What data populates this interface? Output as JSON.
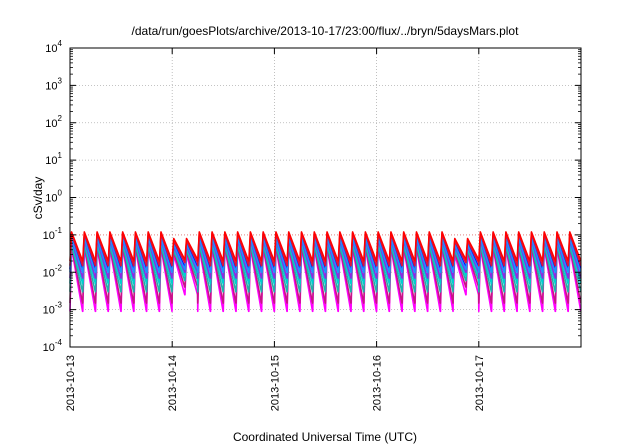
{
  "chart_data": {
    "type": "line",
    "title": "/data/run/goesPlots/archive/2013-10-17/23:00/flux/../bryn/5daysMars.plot",
    "xlabel": "Coordinated Universal Time (UTC)",
    "ylabel": "cSv/day",
    "xlim": [
      "2013-10-13T00:00",
      "2013-10-18T00:00"
    ],
    "ylim": [
      0.0001,
      10000
    ],
    "yscale": "log",
    "grid": true,
    "xtick_labels": [
      "2013-10-13",
      "2013-10-14",
      "2013-10-15",
      "2013-10-16",
      "2013-10-17"
    ],
    "ytick_labels": [
      {
        "base": "10",
        "exp": "4"
      },
      {
        "base": "10",
        "exp": "3"
      },
      {
        "base": "10",
        "exp": "2"
      },
      {
        "base": "10",
        "exp": "1"
      },
      {
        "base": "10",
        "exp": "0"
      },
      {
        "base": "10",
        "exp": "-1"
      },
      {
        "base": "10",
        "exp": "-2"
      },
      {
        "base": "10",
        "exp": "-3"
      },
      {
        "base": "10",
        "exp": "-4"
      }
    ],
    "reference_line": {
      "y": 0.1,
      "color": "#e06666"
    },
    "cycle_hours": 3,
    "cycle_start": "2013-10-13T00:00",
    "quiet_intervals": [
      {
        "start": "2013-10-14T00:00",
        "end": "2013-10-14T06:00"
      },
      {
        "start": "2013-10-16T18:00",
        "end": "2013-10-17T00:00"
      }
    ],
    "series": [
      {
        "color": "#ff00ff",
        "peak": 0.045,
        "trough": 0.0009,
        "quiet_peak": 0.03,
        "quiet_trough": 0.0025
      },
      {
        "color": "#c71585",
        "peak": 0.05,
        "trough": 0.0015,
        "quiet_peak": 0.035,
        "quiet_trough": 0.004
      },
      {
        "color": "#20b2aa",
        "peak": 0.055,
        "trough": 0.003,
        "quiet_peak": 0.04,
        "quiet_trough": 0.006
      },
      {
        "color": "#00ced1",
        "peak": 0.065,
        "trough": 0.005,
        "quiet_peak": 0.045,
        "quiet_trough": 0.008
      },
      {
        "color": "#8a2be2",
        "peak": 0.075,
        "trough": 0.007,
        "quiet_peak": 0.05,
        "quiet_trough": 0.01
      },
      {
        "color": "#0000ff",
        "peak": 0.09,
        "trough": 0.012,
        "quiet_peak": 0.06,
        "quiet_trough": 0.014
      },
      {
        "color": "#1e90ff",
        "peak": 0.08,
        "trough": 0.01,
        "quiet_peak": 0.055,
        "quiet_trough": 0.012
      },
      {
        "color": "#dc143c",
        "peak": 0.11,
        "trough": 0.015,
        "quiet_peak": 0.07,
        "quiet_trough": 0.018
      },
      {
        "color": "#ff0000",
        "peak": 0.12,
        "trough": 0.02,
        "quiet_peak": 0.08,
        "quiet_trough": 0.022
      }
    ]
  }
}
